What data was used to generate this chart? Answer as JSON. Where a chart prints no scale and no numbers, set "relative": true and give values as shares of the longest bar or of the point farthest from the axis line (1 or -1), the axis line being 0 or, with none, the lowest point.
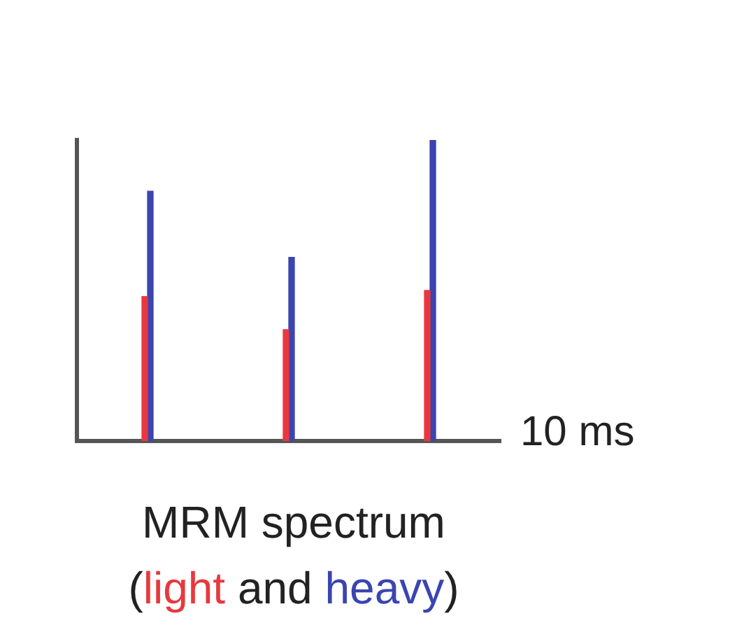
{
  "chart_data": {
    "type": "bar",
    "relative": true,
    "title": "MRM spectrum",
    "xlabel": "10 ms",
    "annotations": [
      "(",
      "and",
      ")"
    ],
    "categories": [
      null,
      null,
      null
    ],
    "series": [
      {
        "name": "light",
        "color": "#e8383d",
        "values": [
          0.48,
          0.37,
          0.5
        ]
      },
      {
        "name": "heavy",
        "color": "#3a45b0",
        "values": [
          0.83,
          0.61,
          1
        ]
      }
    ]
  }
}
